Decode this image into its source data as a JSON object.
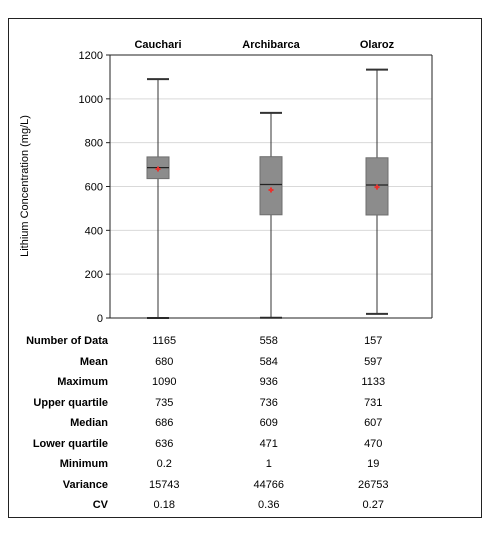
{
  "chart_data": {
    "type": "box",
    "categories": [
      "Cauchari",
      "Archibarca",
      "Olaroz"
    ],
    "ylabel": "Lithium Concentration (mg/L)",
    "ylim": [
      0,
      1200
    ],
    "yticks": [
      0,
      200,
      400,
      600,
      800,
      1000,
      1200
    ],
    "grid": true,
    "boxes": [
      {
        "category": "Cauchari",
        "min": 0.2,
        "q1": 636,
        "median": 686,
        "q3": 735,
        "max": 1090,
        "mean": 680
      },
      {
        "category": "Archibarca",
        "min": 1,
        "q1": 471,
        "median": 609,
        "q3": 736,
        "max": 936,
        "mean": 584
      },
      {
        "category": "Olaroz",
        "min": 19,
        "q1": 470,
        "median": 607,
        "q3": 731,
        "max": 1133,
        "mean": 597
      }
    ],
    "colors": {
      "box": "#8c8c8c",
      "mean_marker": "#e8322e",
      "grid": "#d9d9d9",
      "axis": "#222222"
    }
  },
  "table": {
    "rows": [
      {
        "label": "Number of Data",
        "values": [
          "1165",
          "558",
          "157"
        ]
      },
      {
        "label": "Mean",
        "values": [
          "680",
          "584",
          "597"
        ]
      },
      {
        "label": "Maximum",
        "values": [
          "1090",
          "936",
          "1133"
        ]
      },
      {
        "label": "Upper quartile",
        "values": [
          "735",
          "736",
          "731"
        ]
      },
      {
        "label": "Median",
        "values": [
          "686",
          "609",
          "607"
        ]
      },
      {
        "label": "Lower quartile",
        "values": [
          "636",
          "471",
          "470"
        ]
      },
      {
        "label": "Minimum",
        "values": [
          "0.2",
          "1",
          "19"
        ]
      },
      {
        "label": "Variance",
        "values": [
          "15743",
          "44766",
          "26753"
        ]
      },
      {
        "label": "CV",
        "values": [
          "0.18",
          "0.36",
          "0.27"
        ]
      }
    ]
  }
}
